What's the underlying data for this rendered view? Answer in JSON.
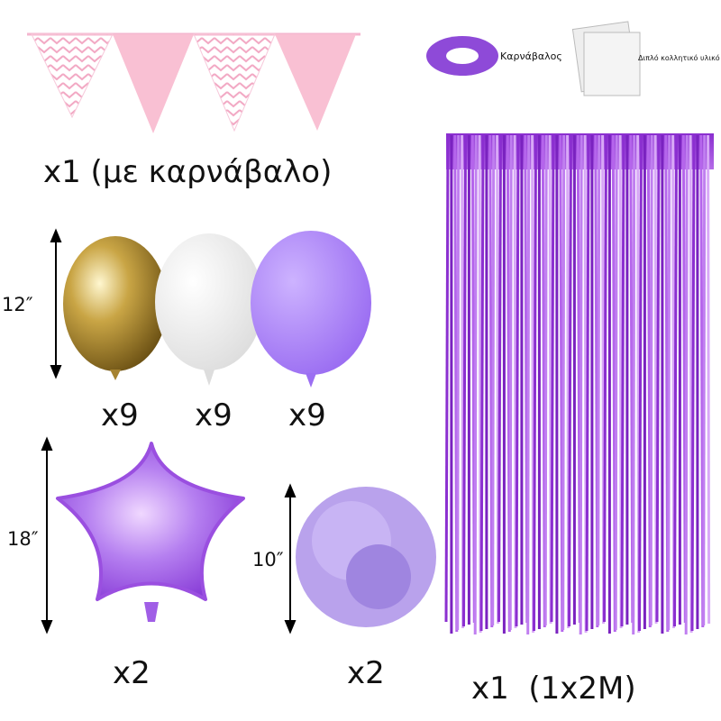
{
  "bunting": {
    "ribbon_label": "Καρνάβαλος",
    "tape_label": "Διπλό κολλητικό υλικό",
    "quantity": "x1 (με καρνάβαλο)"
  },
  "balloons": {
    "size": "12″",
    "quantities": [
      "x9",
      "x9",
      "x9"
    ]
  },
  "star_balloon": {
    "size": "18″",
    "quantity": "x2"
  },
  "pom_pom": {
    "size": "10″",
    "quantity": "x2"
  },
  "curtain": {
    "quantity": "x1  (1x2M)"
  }
}
